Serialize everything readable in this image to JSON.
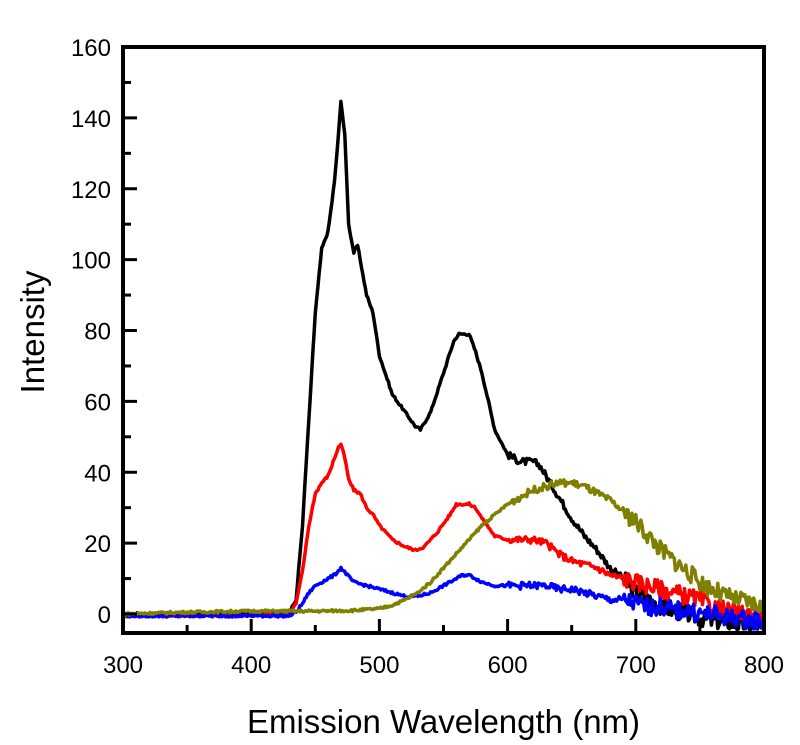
{
  "chart_data": {
    "type": "line",
    "title": "",
    "xlabel": "Emission Wavelength (nm)",
    "ylabel": "Intensity",
    "xlim": [
      300,
      800
    ],
    "ylim": [
      -5,
      160
    ],
    "xticks": [
      300,
      400,
      500,
      600,
      700,
      800
    ],
    "yticks": [
      0,
      20,
      40,
      60,
      80,
      100,
      120,
      140,
      160
    ],
    "x_minor_step": 50,
    "y_minor_step": 10,
    "grid": false,
    "legend": "none",
    "series": [
      {
        "name": "black",
        "color": "#000000",
        "x": [
          300,
          350,
          400,
          430,
          435,
          440,
          445,
          450,
          455,
          460,
          465,
          468,
          470,
          473,
          476,
          480,
          483,
          486,
          490,
          495,
          500,
          510,
          520,
          528,
          532,
          540,
          550,
          558,
          562,
          566,
          570,
          575,
          580,
          585,
          590,
          600,
          610,
          620,
          625,
          630,
          640,
          650,
          660,
          670,
          680,
          690,
          700,
          710,
          720,
          730,
          740,
          750,
          760,
          770,
          780,
          790,
          800
        ],
        "y": [
          0,
          0,
          0.5,
          0.5,
          4,
          25,
          55,
          85,
          103,
          108,
          122,
          135,
          145,
          135,
          110,
          102,
          104,
          98,
          90,
          85,
          73,
          62,
          57,
          53,
          52,
          57,
          68,
          77,
          79,
          79,
          79,
          74,
          68,
          60,
          52,
          45,
          43,
          43,
          42,
          39,
          33,
          27,
          22,
          18,
          13,
          10,
          6,
          4,
          2,
          1,
          0,
          -1,
          -2,
          -2,
          -3,
          -3,
          -3
        ]
      },
      {
        "name": "red",
        "color": "#ff0000",
        "x": [
          300,
          350,
          400,
          430,
          435,
          440,
          445,
          450,
          455,
          460,
          465,
          468,
          470,
          473,
          476,
          480,
          485,
          490,
          495,
          500,
          510,
          520,
          528,
          535,
          545,
          555,
          560,
          565,
          570,
          575,
          580,
          590,
          600,
          610,
          620,
          630,
          640,
          650,
          660,
          670,
          680,
          690,
          700,
          710,
          720,
          730,
          740,
          750,
          760,
          770,
          780,
          790,
          800
        ],
        "y": [
          -0.5,
          -0.5,
          -0.5,
          0,
          3,
          12,
          25,
          34,
          37,
          39,
          44,
          47,
          48,
          44,
          38,
          35,
          34,
          30,
          28,
          25,
          21,
          19,
          18,
          19,
          23,
          28,
          31,
          31,
          31,
          30,
          27,
          22,
          21,
          21,
          21,
          20,
          17,
          15,
          14,
          13,
          11,
          10,
          9,
          8,
          7,
          6,
          5,
          4,
          2,
          1,
          0,
          0,
          0
        ]
      },
      {
        "name": "blue",
        "color": "#0000ff",
        "x": [
          300,
          350,
          400,
          430,
          435,
          440,
          445,
          450,
          455,
          460,
          465,
          470,
          475,
          480,
          490,
          500,
          510,
          520,
          530,
          540,
          550,
          560,
          565,
          570,
          580,
          590,
          600,
          610,
          620,
          630,
          640,
          650,
          660,
          670,
          680,
          690,
          700,
          710,
          720,
          730,
          740,
          750,
          760,
          770,
          780,
          790,
          800
        ],
        "y": [
          -0.5,
          -0.5,
          -0.5,
          -0.5,
          0.5,
          3,
          6,
          8,
          9,
          10,
          11,
          13,
          11,
          9,
          8,
          7,
          6,
          5,
          5,
          6,
          8,
          10,
          11,
          11,
          9,
          8,
          8,
          8,
          8,
          8,
          7,
          7,
          6,
          5,
          4,
          4,
          3,
          2,
          2,
          1,
          1,
          0,
          0,
          -1,
          -1,
          -2,
          -2
        ]
      },
      {
        "name": "olive",
        "color": "#808000",
        "x": [
          300,
          350,
          400,
          450,
          480,
          500,
          510,
          520,
          530,
          540,
          550,
          560,
          570,
          580,
          590,
          600,
          610,
          620,
          630,
          640,
          645,
          650,
          660,
          670,
          680,
          690,
          700,
          710,
          720,
          730,
          740,
          750,
          760,
          770,
          780,
          790,
          800
        ],
        "y": [
          0,
          0.5,
          0.8,
          0.8,
          1,
          1.5,
          2.5,
          4,
          6,
          9,
          13,
          17,
          21,
          25,
          28,
          31,
          33,
          35,
          36,
          37,
          37,
          37,
          36,
          34,
          32,
          29,
          26,
          22,
          18,
          15,
          12,
          9,
          7,
          5,
          4,
          3,
          2
        ]
      }
    ]
  }
}
